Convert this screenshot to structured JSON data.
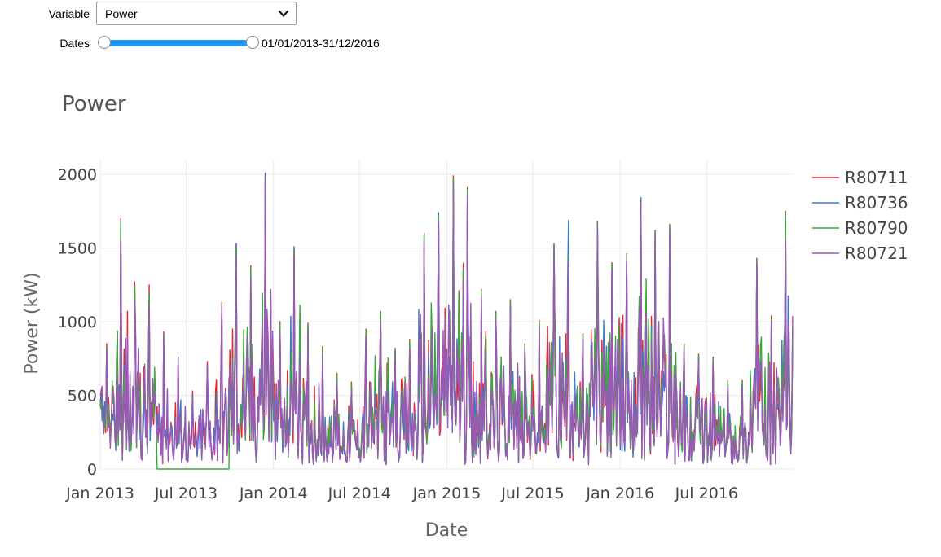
{
  "controls": {
    "variable_label": "Variable",
    "variable_value": "Power",
    "dates_label": "Dates",
    "date_range": "01/01/2013-31/12/2016"
  },
  "icons": {
    "dropdown": "chevron-down-icon"
  },
  "colors": {
    "slider_fill": "#2196f3",
    "grid": "#ebebeb",
    "text": "#444444"
  },
  "chart_data": {
    "type": "line",
    "title": "Power",
    "xlabel": "Date",
    "ylabel": "Power (kW)",
    "ylim": [
      0,
      2100
    ],
    "xlim": [
      "2013-01-01",
      "2016-12-31"
    ],
    "x_ticks": [
      {
        "date": "2013-01-01",
        "label": "Jan 2013"
      },
      {
        "date": "2013-07-01",
        "label": "Jul 2013"
      },
      {
        "date": "2014-01-01",
        "label": "Jan 2014"
      },
      {
        "date": "2014-07-01",
        "label": "Jul 2014"
      },
      {
        "date": "2015-01-01",
        "label": "Jan 2015"
      },
      {
        "date": "2015-07-01",
        "label": "Jul 2015"
      },
      {
        "date": "2016-01-01",
        "label": "Jan 2016"
      },
      {
        "date": "2016-07-01",
        "label": "Jul 2016"
      }
    ],
    "y_ticks": [
      0,
      500,
      1000,
      1500,
      2000
    ],
    "grid": true,
    "legend_position": "right",
    "x": [
      "2013-01-01",
      "2013-02-01",
      "2013-03-01",
      "2013-04-01",
      "2013-05-01",
      "2013-06-01",
      "2013-07-01",
      "2013-08-01",
      "2013-09-01",
      "2013-10-01",
      "2013-11-01",
      "2013-12-01",
      "2014-01-01",
      "2014-02-01",
      "2014-03-01",
      "2014-04-01",
      "2014-05-01",
      "2014-06-01",
      "2014-07-01",
      "2014-08-01",
      "2014-09-01",
      "2014-10-01",
      "2014-11-01",
      "2014-12-01",
      "2015-01-01",
      "2015-02-01",
      "2015-03-01",
      "2015-04-01",
      "2015-05-01",
      "2015-06-01",
      "2015-07-01",
      "2015-08-01",
      "2015-09-01",
      "2015-10-01",
      "2015-11-01",
      "2015-12-01",
      "2016-01-01",
      "2016-02-01",
      "2016-03-01",
      "2016-04-01",
      "2016-05-01",
      "2016-06-01",
      "2016-07-01",
      "2016-08-01",
      "2016-09-01",
      "2016-10-01",
      "2016-11-01",
      "2016-12-01"
    ],
    "series": [
      {
        "name": "R80711",
        "color": "#e8262a",
        "values": [
          850,
          1700,
          1270,
          1250,
          930,
          760,
          530,
          730,
          1130,
          1530,
          1380,
          2000,
          1000,
          1500,
          990,
          830,
          650,
          590,
          950,
          1070,
          820,
          880,
          1600,
          1730,
          1990,
          1910,
          1220,
          1070,
          1150,
          850,
          1010,
          1530,
          1460,
          920,
          1680,
          1400,
          1460,
          1840,
          1620,
          1660,
          850,
          780,
          760,
          600,
          600,
          1430,
          1040,
          1750
        ]
      },
      {
        "name": "R80736",
        "color": "#3b78c8",
        "values": [
          800,
          1650,
          1200,
          1150,
          900,
          750,
          500,
          700,
          1100,
          1530,
          1350,
          2010,
          950,
          1510,
          960,
          800,
          620,
          560,
          920,
          1040,
          800,
          850,
          1580,
          1740,
          1960,
          1890,
          1200,
          1050,
          1120,
          830,
          990,
          1520,
          1690,
          900,
          1670,
          1380,
          1440,
          1840,
          1600,
          1640,
          830,
          760,
          740,
          580,
          580,
          1400,
          1000,
          1700
        ]
      },
      {
        "name": "R80790",
        "color": "#3aa83a",
        "values": [
          830,
          1680,
          1240,
          1200,
          0,
          0,
          0,
          0,
          0,
          1500,
          1370,
          1980,
          990,
          1480,
          980,
          820,
          640,
          580,
          940,
          1060,
          810,
          870,
          1590,
          1720,
          1970,
          1900,
          1210,
          1060,
          1140,
          840,
          1000,
          1510,
          1450,
          910,
          1660,
          1390,
          1450,
          1830,
          1610,
          1650,
          840,
          770,
          750,
          590,
          590,
          1420,
          1020,
          1740
        ]
      },
      {
        "name": "R80721",
        "color": "#9b59b6",
        "values": [
          820,
          1560,
          1150,
          1120,
          880,
          730,
          490,
          690,
          1080,
          1450,
          1300,
          2000,
          940,
          1450,
          940,
          780,
          600,
          540,
          900,
          1000,
          780,
          820,
          1540,
          1680,
          1930,
          1860,
          1170,
          1020,
          1100,
          810,
          960,
          1490,
          1420,
          880,
          1640,
          1350,
          1420,
          1820,
          1580,
          1620,
          810,
          740,
          720,
          560,
          560,
          1400,
          1000,
          1560
        ]
      }
    ]
  }
}
